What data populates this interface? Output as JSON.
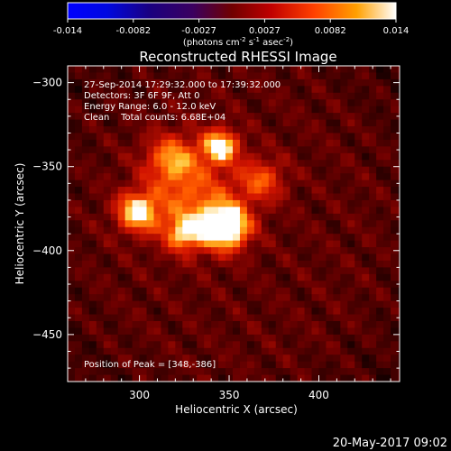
{
  "chart_data": {
    "type": "heatmap",
    "title": "Reconstructed RHESSI Image",
    "xlabel": "Heliocentric X (arcsec)",
    "ylabel": "Heliocentric Y (arcsec)",
    "xlim": [
      260,
      445
    ],
    "ylim": [
      -478,
      -290
    ],
    "xticks": [
      300,
      350,
      400
    ],
    "yticks": [
      -300,
      -350,
      -400,
      -450
    ],
    "colorbar": {
      "ticks": [
        "-0.014",
        "-0.0082",
        "-0.0027",
        "0.0027",
        "0.0082",
        "0.014"
      ],
      "range": [
        -0.014,
        0.014
      ],
      "unit_label": "(photons cm",
      "unit_exp1": "-2",
      "unit_mid": " s",
      "unit_exp2": "-1",
      "unit_mid2": " asec",
      "unit_exp3": "-2",
      "unit_end": ")"
    },
    "annotations": [
      "27-Sep-2014 17:29:32.000 to 17:39:32.000",
      "Detectors: 3F 6F 9F, Att 0",
      "Energy Range: 6.0 - 12.0 keV",
      "Clean    Total counts: 6.68E+04"
    ],
    "peak_label": "Position of Peak = [348,-386]",
    "sources": [
      {
        "x": 348,
        "y": -386,
        "amp": 0.014,
        "sigma": 9
      },
      {
        "x": 345,
        "y": -338,
        "amp": 0.011,
        "sigma": 7
      },
      {
        "x": 299,
        "y": -377,
        "amp": 0.0105,
        "sigma": 8
      },
      {
        "x": 325,
        "y": -390,
        "amp": 0.008,
        "sigma": 7
      },
      {
        "x": 318,
        "y": -345,
        "amp": 0.007,
        "sigma": 10
      },
      {
        "x": 368,
        "y": -358,
        "amp": 0.006,
        "sigma": 9
      },
      {
        "x": 330,
        "y": -370,
        "amp": 0.0065,
        "sigma": 18
      }
    ]
  },
  "footer": {
    "date": "20-May-2017 09:02"
  }
}
